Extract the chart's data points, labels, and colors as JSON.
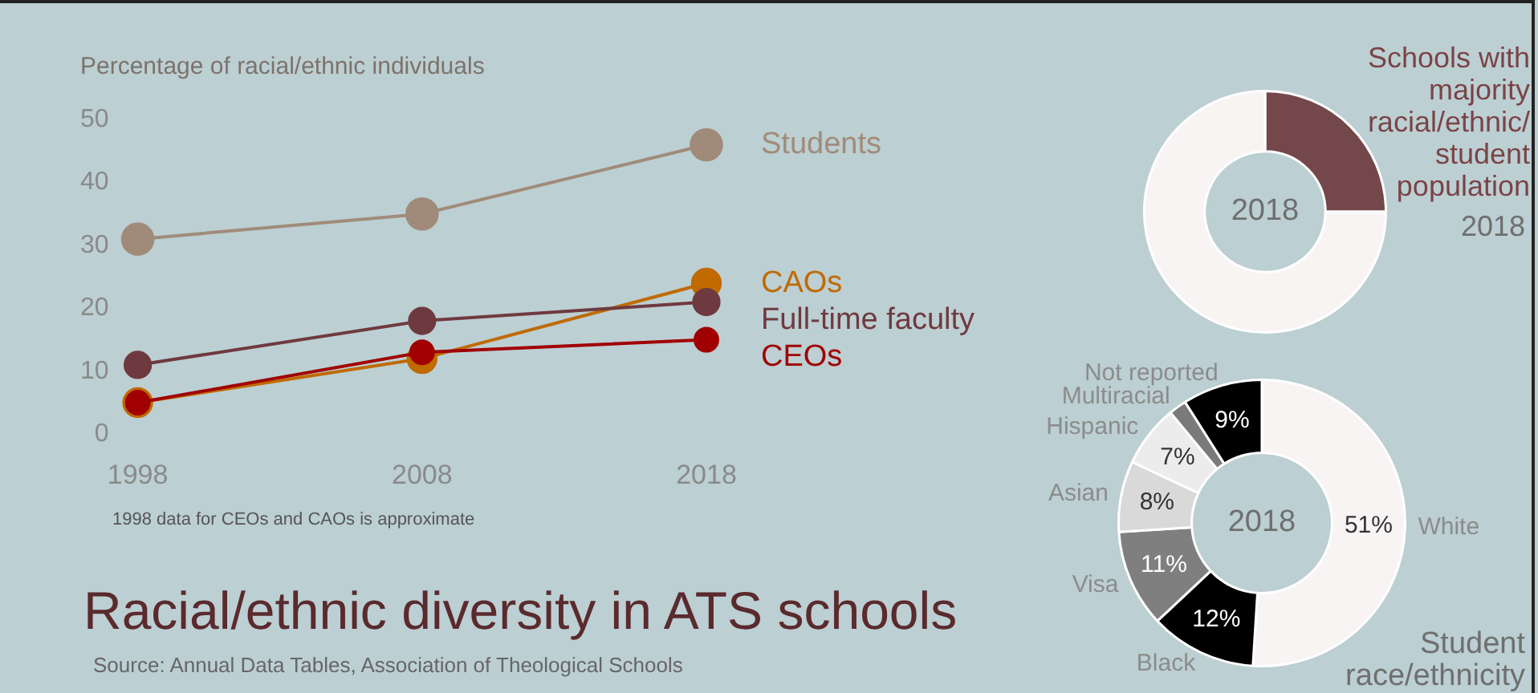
{
  "chart_data": [
    {
      "type": "line",
      "title": "Racial/ethnic diversity in ATS schools",
      "ylabel": "Percentage of racial/ethnic individuals",
      "categories": [
        "1998",
        "2008",
        "2018"
      ],
      "ylim": [
        0,
        50
      ],
      "yticks": [
        0,
        10,
        20,
        30,
        40,
        50
      ],
      "grid": false,
      "legend": false,
      "marker": "circle",
      "line_style": "solid",
      "series": [
        {
          "name": "Students",
          "color": "#a08b7a",
          "values": [
            31,
            35,
            46
          ]
        },
        {
          "name": "CAOs",
          "color": "#c06a00",
          "values": [
            5,
            12,
            24
          ]
        },
        {
          "name": "Full-time faculty",
          "color": "#6e3a3f",
          "values": [
            11,
            18,
            21
          ]
        },
        {
          "name": "CEOs",
          "color": "#a00000",
          "values": [
            5,
            13,
            15
          ]
        }
      ],
      "annotations": [
        "1998 data for CEOs and CAOs is approximate",
        "Source: Annual Data Tables, Association of Theological Schools"
      ]
    },
    {
      "type": "donut",
      "title": "Schools with majority racial/ethnic/ student population",
      "categories": [
        null,
        null
      ],
      "values": [
        25,
        75
      ],
      "colors": [
        "#74474a",
        "#f9f4f4"
      ],
      "legend": false,
      "annotations": [
        "2018",
        "2018"
      ]
    },
    {
      "type": "donut",
      "title": "Student race/ethnicity",
      "categories": [
        "White",
        "Black",
        "Visa",
        "Asian",
        "Hispanic",
        "Multiracial",
        "Not reported"
      ],
      "values": [
        51,
        12,
        11,
        8,
        7,
        2,
        9
      ],
      "colors": [
        "#f9f4f4",
        "#000000",
        "#7f7f7f",
        "#d9d9d9",
        "#ececec",
        "#7a7a7a",
        "#000000"
      ],
      "legend": false,
      "value_labels": [
        "51%",
        "12%",
        "11%",
        "8%",
        "7%",
        null,
        "9%"
      ],
      "annotations": [
        "2018"
      ]
    }
  ]
}
